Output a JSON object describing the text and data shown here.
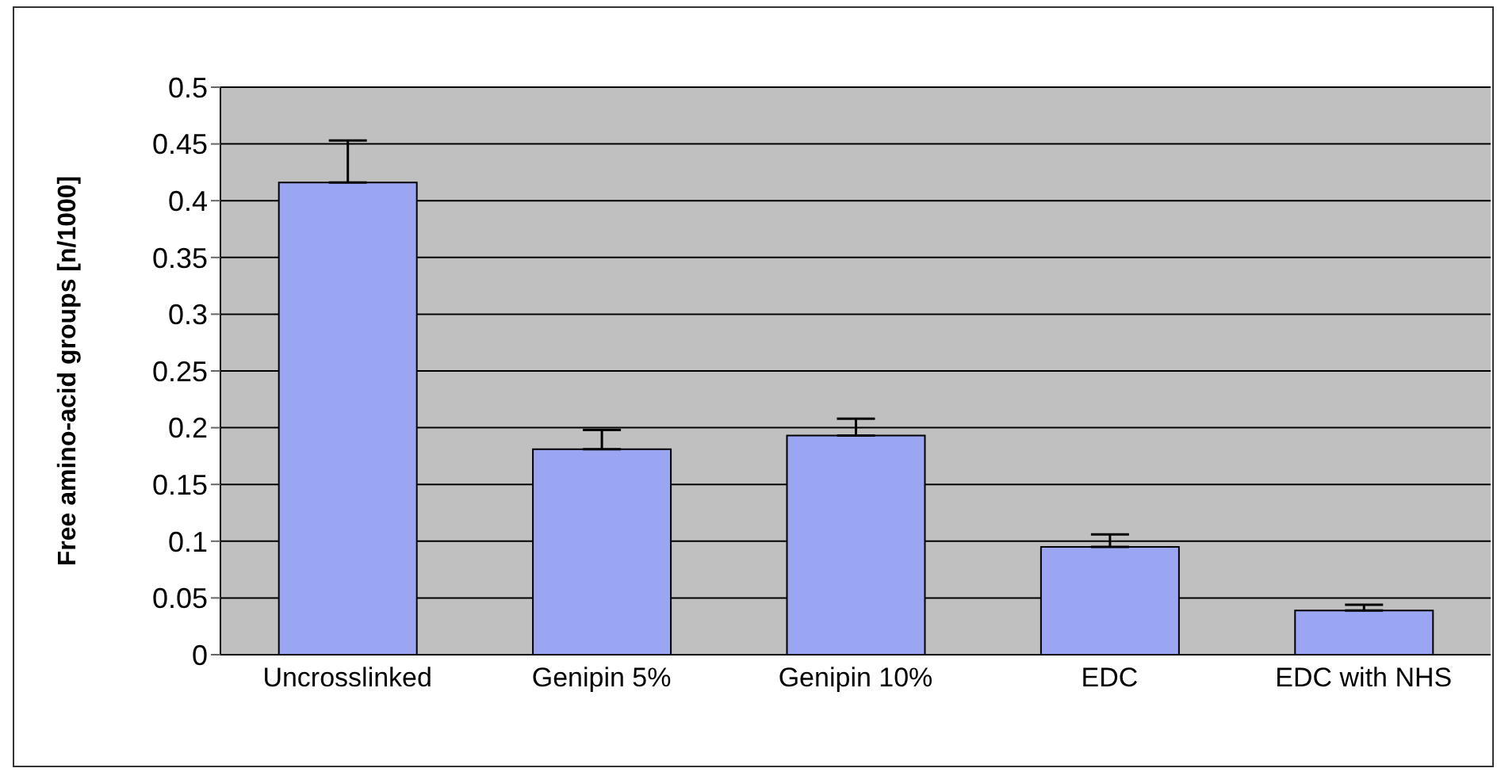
{
  "chart_data": {
    "type": "bar",
    "ylabel": "Free amino-acid groups [n/1000]",
    "categories": [
      "Uncrosslinked",
      "Genipin 5%",
      "Genipin 10%",
      "EDC",
      "EDC with NHS"
    ],
    "values": [
      0.416,
      0.181,
      0.193,
      0.095,
      0.039
    ],
    "errors": [
      [
        0.416,
        0.453
      ],
      [
        0.181,
        0.198
      ],
      [
        0.193,
        0.208
      ],
      [
        0.095,
        0.106
      ],
      [
        0.039,
        0.044
      ]
    ],
    "color": "#9aa6f2",
    "ylim": [
      0,
      0.5
    ],
    "yticks": [
      0,
      0.05,
      0.1,
      0.15,
      0.2,
      0.25,
      0.3,
      0.35,
      0.4,
      0.45,
      0.5
    ],
    "grid": "y",
    "legend": false
  }
}
